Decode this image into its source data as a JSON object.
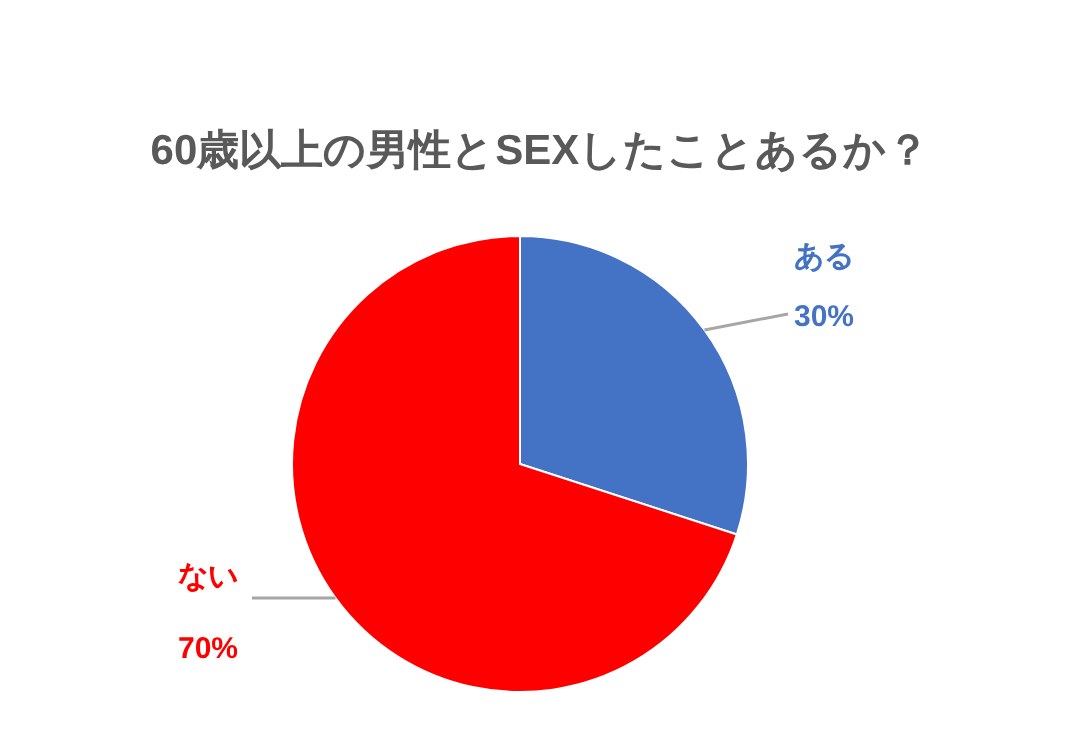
{
  "chart_data": {
    "type": "pie",
    "title": "60歳以上の男性とSEXしたことあるか？",
    "categories": [
      "ある",
      "ない"
    ],
    "values": [
      30,
      70
    ],
    "colors": [
      "#4472c4",
      "#ff0000"
    ],
    "value_labels": [
      "30%",
      "70%"
    ]
  }
}
